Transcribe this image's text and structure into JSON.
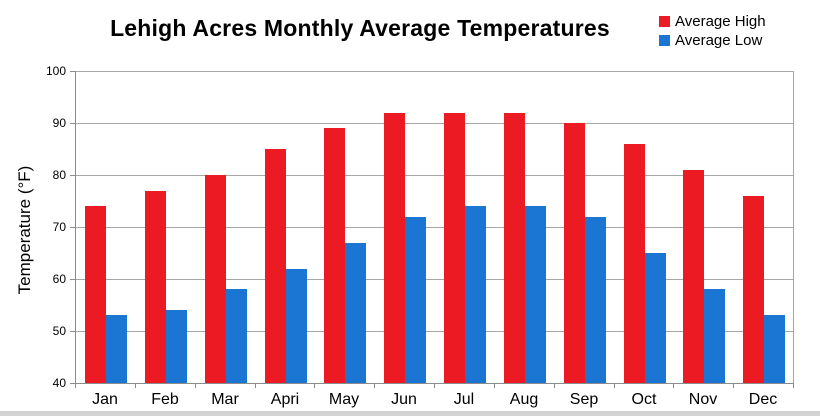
{
  "chart_data": {
    "type": "bar",
    "title": "Lehigh Acres Monthly Average Temperatures",
    "ylabel": "Temperature (°F)",
    "xlabel": "",
    "categories": [
      "Jan",
      "Feb",
      "Mar",
      "Apri",
      "May",
      "Jun",
      "Jul",
      "Aug",
      "Sep",
      "Oct",
      "Nov",
      "Dec"
    ],
    "series": [
      {
        "name": "Average High",
        "color": "#ec1b23",
        "values": [
          74,
          77,
          80,
          85,
          89,
          92,
          92,
          92,
          90,
          86,
          81,
          76
        ]
      },
      {
        "name": "Average Low",
        "color": "#1b75d2",
        "values": [
          53,
          54,
          58,
          62,
          67,
          72,
          74,
          74,
          72,
          65,
          58,
          53
        ]
      }
    ],
    "ylim": [
      40,
      100
    ],
    "ytick_step": 10,
    "yticks": [
      100,
      90,
      80,
      70,
      60,
      50,
      40
    ],
    "grid": true,
    "legend_position": "top-right",
    "colors": {
      "gridline": "#a6a6a6",
      "axis": "#8c8c8c",
      "text": "#000000",
      "background": "#ffffff"
    }
  }
}
